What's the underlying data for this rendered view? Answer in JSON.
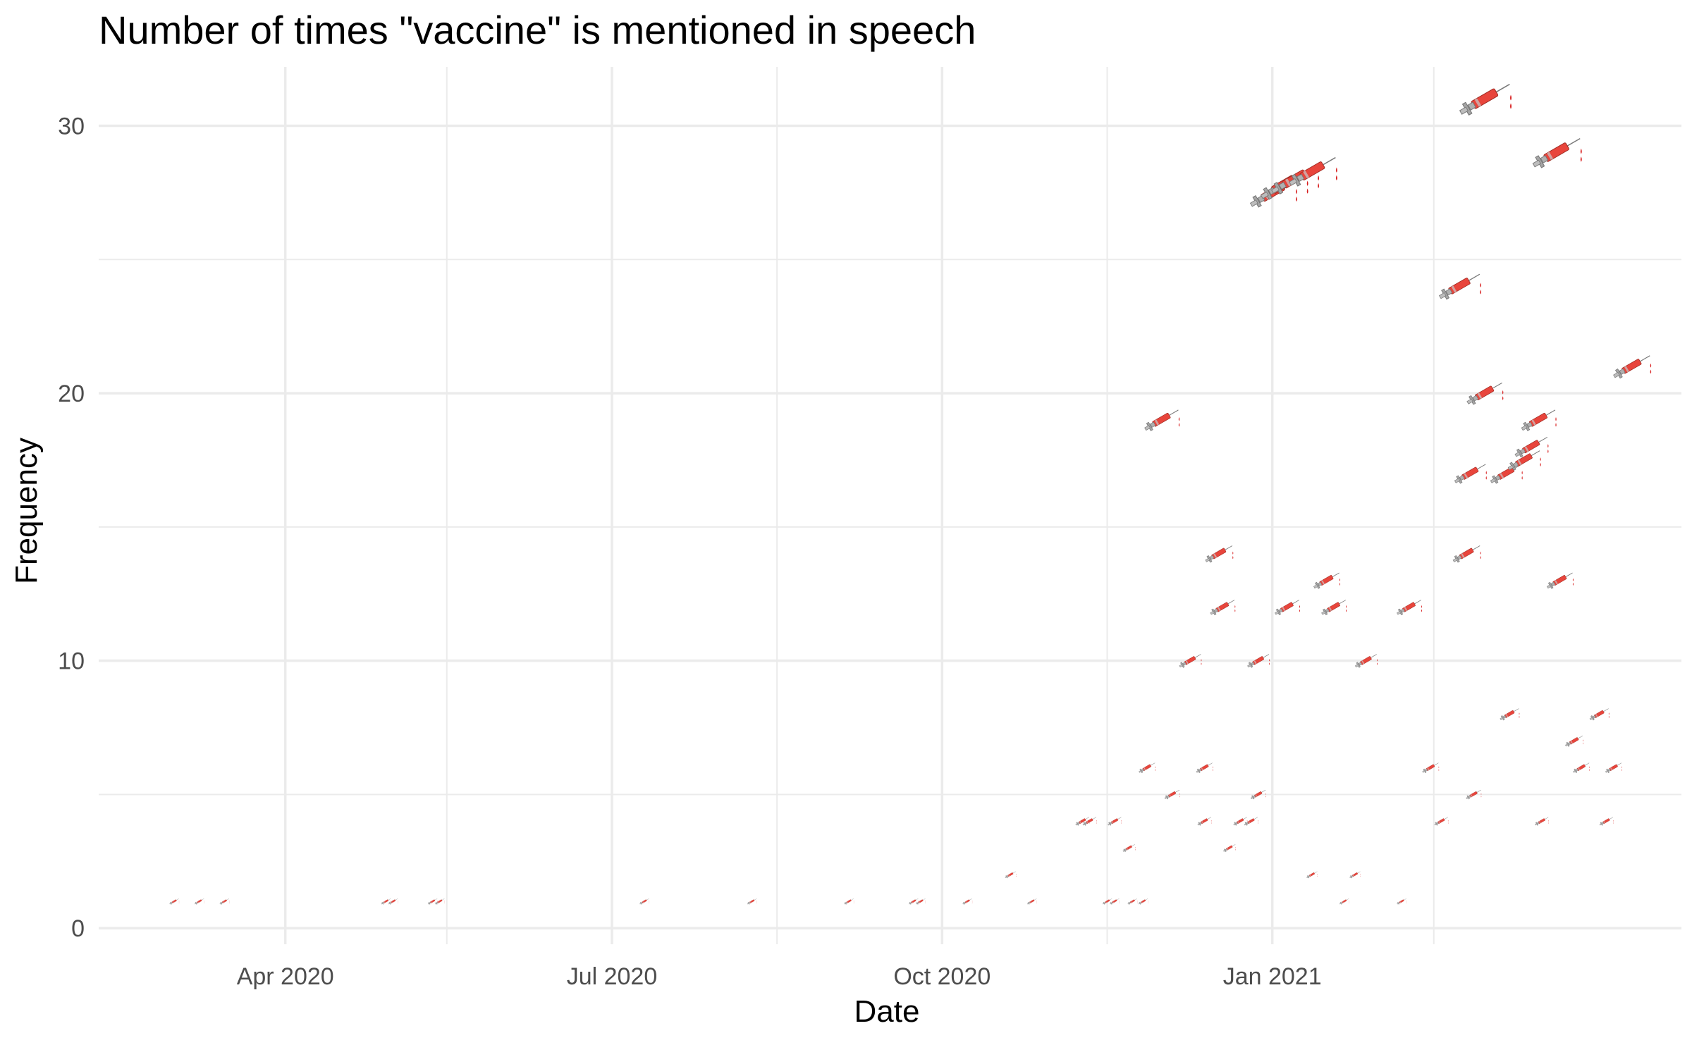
{
  "chart_data": {
    "type": "scatter",
    "title": "Number of times \"vaccine\" is mentioned in speech",
    "xlabel": "Date",
    "ylabel": "Frequency",
    "marker": "syringe-icon",
    "colors": {
      "syringe_body": "#e8453c",
      "syringe_barrel": "#b0b0b0",
      "drop": "#d81e1e",
      "grid": "#ebebeb",
      "tick_text": "#4d4d4d"
    },
    "xlim": [
      "2020-02-09",
      "2021-04-25"
    ],
    "ylim": [
      -0.6,
      32.2
    ],
    "x_ticks": [
      {
        "date": "2020-04-01",
        "label": "Apr 2020"
      },
      {
        "date": "2020-07-01",
        "label": "Jul 2020"
      },
      {
        "date": "2020-10-01",
        "label": "Oct 2020"
      },
      {
        "date": "2021-01-01",
        "label": "Jan 2021"
      }
    ],
    "x_minor_ticks": [
      "2020-05-16",
      "2020-08-16",
      "2020-11-16",
      "2021-02-15"
    ],
    "y_ticks": [
      {
        "value": 0,
        "label": "0"
      },
      {
        "value": 10,
        "label": "10"
      },
      {
        "value": 20,
        "label": "20"
      },
      {
        "value": 30,
        "label": "30"
      }
    ],
    "y_minor_ticks": [
      5,
      15,
      25
    ],
    "grid": true,
    "points": [
      {
        "x": "2020-03-01",
        "y": 1
      },
      {
        "x": "2020-03-08",
        "y": 1
      },
      {
        "x": "2020-03-15",
        "y": 1
      },
      {
        "x": "2020-04-29",
        "y": 1
      },
      {
        "x": "2020-05-01",
        "y": 1
      },
      {
        "x": "2020-05-12",
        "y": 1
      },
      {
        "x": "2020-05-14",
        "y": 1
      },
      {
        "x": "2020-07-10",
        "y": 1
      },
      {
        "x": "2020-08-09",
        "y": 1
      },
      {
        "x": "2020-09-05",
        "y": 1
      },
      {
        "x": "2020-09-23",
        "y": 1
      },
      {
        "x": "2020-09-25",
        "y": 1
      },
      {
        "x": "2020-10-08",
        "y": 1
      },
      {
        "x": "2020-10-20",
        "y": 2
      },
      {
        "x": "2020-10-26",
        "y": 1
      },
      {
        "x": "2020-11-09",
        "y": 4
      },
      {
        "x": "2020-11-11",
        "y": 4
      },
      {
        "x": "2020-11-16",
        "y": 1
      },
      {
        "x": "2020-11-18",
        "y": 1
      },
      {
        "x": "2020-11-18",
        "y": 4
      },
      {
        "x": "2020-11-23",
        "y": 1
      },
      {
        "x": "2020-11-22",
        "y": 3
      },
      {
        "x": "2020-11-26",
        "y": 1
      },
      {
        "x": "2020-11-27",
        "y": 6
      },
      {
        "x": "2020-12-01",
        "y": 19
      },
      {
        "x": "2020-12-04",
        "y": 5
      },
      {
        "x": "2020-12-09",
        "y": 10
      },
      {
        "x": "2020-12-13",
        "y": 4
      },
      {
        "x": "2020-12-13",
        "y": 6
      },
      {
        "x": "2020-12-17",
        "y": 14
      },
      {
        "x": "2020-12-18",
        "y": 12
      },
      {
        "x": "2020-12-20",
        "y": 3
      },
      {
        "x": "2020-12-23",
        "y": 4
      },
      {
        "x": "2020-12-26",
        "y": 4
      },
      {
        "x": "2020-12-28",
        "y": 5
      },
      {
        "x": "2020-12-28",
        "y": 10
      },
      {
        "x": "2021-01-01",
        "y": 27.5
      },
      {
        "x": "2021-01-04",
        "y": 27.8
      },
      {
        "x": "2021-01-05",
        "y": 12
      },
      {
        "x": "2021-01-07",
        "y": 28
      },
      {
        "x": "2021-01-12",
        "y": 28.3
      },
      {
        "x": "2021-01-12",
        "y": 2
      },
      {
        "x": "2021-01-16",
        "y": 13
      },
      {
        "x": "2021-01-18",
        "y": 12
      },
      {
        "x": "2021-01-21",
        "y": 1
      },
      {
        "x": "2021-01-24",
        "y": 2
      },
      {
        "x": "2021-01-27",
        "y": 10
      },
      {
        "x": "2021-02-06",
        "y": 1
      },
      {
        "x": "2021-02-08",
        "y": 12
      },
      {
        "x": "2021-02-14",
        "y": 6
      },
      {
        "x": "2021-02-17",
        "y": 4
      },
      {
        "x": "2021-02-22",
        "y": 24
      },
      {
        "x": "2021-02-24",
        "y": 14
      },
      {
        "x": "2021-02-25",
        "y": 17
      },
      {
        "x": "2021-02-26",
        "y": 5
      },
      {
        "x": "2021-03-01",
        "y": 20
      },
      {
        "x": "2021-03-01",
        "y": 31
      },
      {
        "x": "2021-03-07",
        "y": 17
      },
      {
        "x": "2021-03-08",
        "y": 8
      },
      {
        "x": "2021-03-12",
        "y": 17.5
      },
      {
        "x": "2021-03-14",
        "y": 18
      },
      {
        "x": "2021-03-16",
        "y": 19
      },
      {
        "x": "2021-03-17",
        "y": 4
      },
      {
        "x": "2021-03-21",
        "y": 29
      },
      {
        "x": "2021-03-22",
        "y": 13
      },
      {
        "x": "2021-03-26",
        "y": 7
      },
      {
        "x": "2021-03-28",
        "y": 6
      },
      {
        "x": "2021-04-02",
        "y": 8
      },
      {
        "x": "2021-04-04",
        "y": 4
      },
      {
        "x": "2021-04-06",
        "y": 6
      },
      {
        "x": "2021-04-11",
        "y": 21
      }
    ]
  }
}
